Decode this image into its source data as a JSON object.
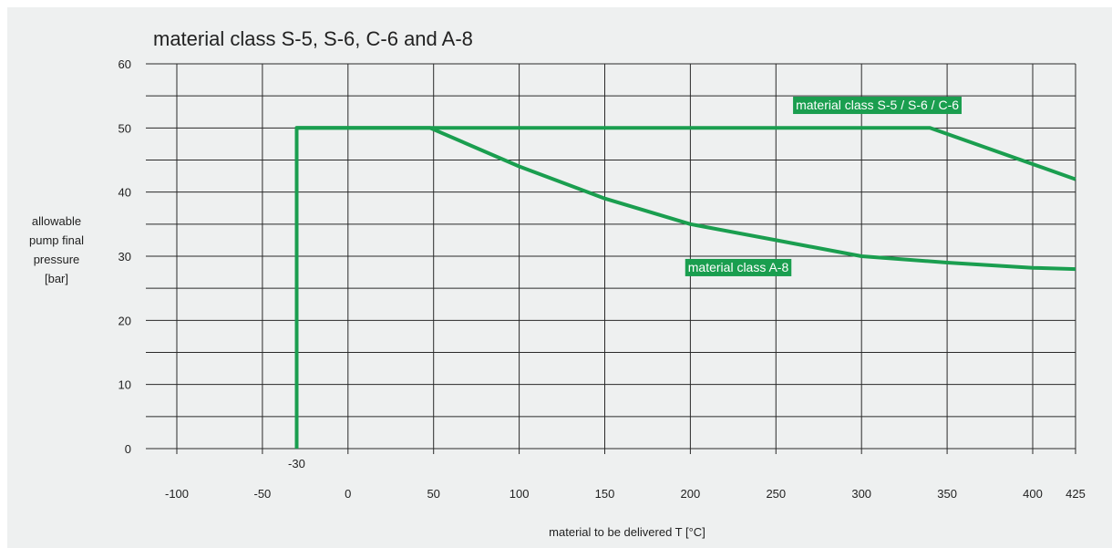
{
  "chart_data": {
    "type": "line",
    "title": "material class S-5, S-6, C-6 and A-8",
    "xlabel": "material to be delivered T [°C]",
    "ylabel": "allowable pump final pressure [bar]",
    "ylabel_lines": [
      "allowable",
      "pump final",
      "pressure",
      "[bar]"
    ],
    "xlim": [
      -115,
      425
    ],
    "ylim": [
      0,
      60
    ],
    "x_ticks": [
      -100,
      -50,
      0,
      50,
      100,
      150,
      200,
      250,
      300,
      350,
      400,
      425
    ],
    "y_ticks": [
      0,
      10,
      20,
      30,
      40,
      50,
      60
    ],
    "x_extra_label": {
      "value": -30,
      "label": "-30"
    },
    "grid": true,
    "line_color": "#1a9e4f",
    "series": [
      {
        "name": "material class S-5 / S-6 / C-6",
        "x": [
          -30,
          -30,
          340,
          425
        ],
        "y": [
          0,
          50,
          50,
          42
        ],
        "label_at": [
          260,
          53.6
        ]
      },
      {
        "name": "material class A-8",
        "x": [
          -30,
          -30,
          48,
          100,
          150,
          200,
          250,
          300,
          350,
          400,
          425
        ],
        "y": [
          0,
          50,
          50,
          44,
          39,
          35,
          32.5,
          30,
          29,
          28.2,
          28
        ],
        "label_at": [
          197,
          28.3
        ]
      }
    ]
  }
}
